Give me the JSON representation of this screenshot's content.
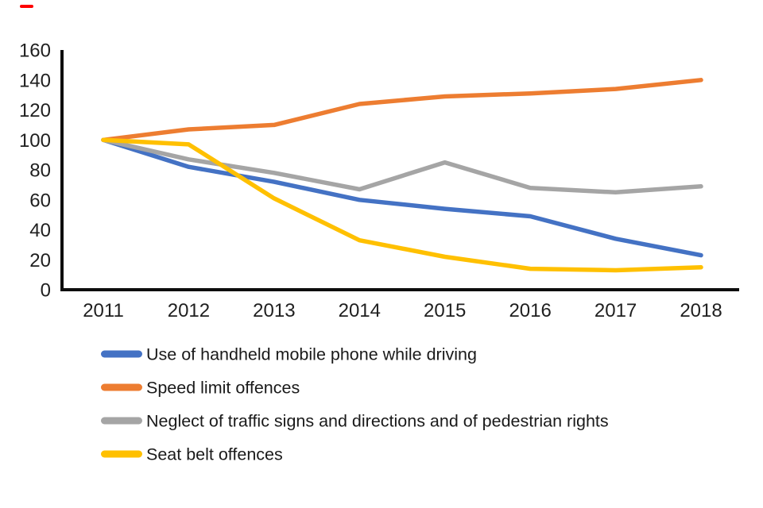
{
  "marks": {
    "top_left_dash_color": "#fe0000"
  },
  "axis": {
    "line_color": "#0d0d0d",
    "tick_label_color": "#1f1f1f"
  },
  "legend": {
    "text_color": "#1a1a1a"
  },
  "chart_data": {
    "type": "line",
    "title": "",
    "xlabel": "",
    "ylabel": "",
    "x": [
      "2011",
      "2012",
      "2013",
      "2014",
      "2015",
      "2016",
      "2017",
      "2018"
    ],
    "ylim": [
      0,
      160
    ],
    "ytick_step": 20,
    "ytick_labels": [
      "0",
      "20",
      "40",
      "60",
      "80",
      "100",
      "120",
      "140",
      "160"
    ],
    "grid": false,
    "legend_position": "bottom-left",
    "series": [
      {
        "name": "Use of handheld mobile phone while driving",
        "color": "#4472C4",
        "values": [
          100,
          82,
          72,
          60,
          54,
          49,
          34,
          23
        ]
      },
      {
        "name": "Speed limit offences",
        "color": "#ED7D31",
        "values": [
          100,
          107,
          110,
          124,
          129,
          131,
          134,
          140
        ]
      },
      {
        "name": "Neglect of traffic signs and directions and of pedestrian rights",
        "color": "#A5A5A5",
        "values": [
          100,
          87,
          78,
          67,
          85,
          68,
          65,
          69
        ]
      },
      {
        "name": "Seat belt offences",
        "color": "#FFC000",
        "values": [
          100,
          97,
          61,
          33,
          22,
          14,
          13,
          15
        ]
      }
    ]
  }
}
